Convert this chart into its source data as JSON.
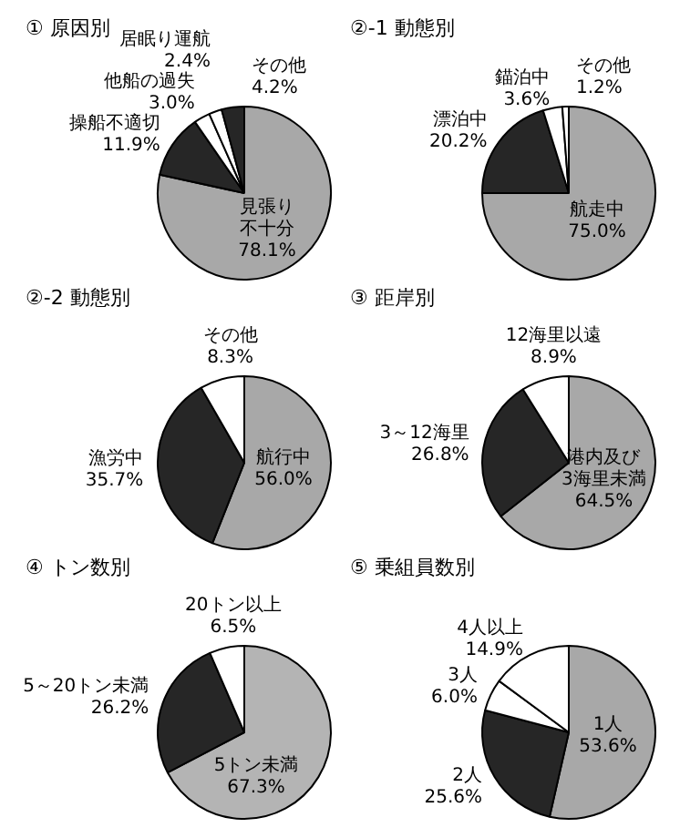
{
  "chart_data": [
    {
      "type": "pie",
      "title": "① 原因別",
      "categories": [
        "見張り不十分",
        "操船不適切",
        "他船の過失",
        "居眠り運航",
        "その他"
      ],
      "values": [
        78.1,
        11.9,
        3.0,
        2.4,
        4.2
      ],
      "colors": [
        "#a8a8a8",
        "#262626",
        "#ffffff",
        "#ffffff",
        "#262626"
      ],
      "value_labels": [
        "78.1%",
        "11.9%",
        "3.0%",
        "2.4%",
        "4.2%"
      ]
    },
    {
      "type": "pie",
      "title": "②-1 動態別",
      "categories": [
        "航走中",
        "漂泊中",
        "錨泊中",
        "その他"
      ],
      "values": [
        75.0,
        20.2,
        3.6,
        1.2
      ],
      "colors": [
        "#a8a8a8",
        "#262626",
        "#ffffff",
        "#ffffff"
      ],
      "value_labels": [
        "75.0%",
        "20.2%",
        "3.6%",
        "1.2%"
      ]
    },
    {
      "type": "pie",
      "title": "②-2 動態別",
      "categories": [
        "航行中",
        "漁労中",
        "その他"
      ],
      "values": [
        56.0,
        35.7,
        8.3
      ],
      "colors": [
        "#a8a8a8",
        "#262626",
        "#ffffff"
      ],
      "value_labels": [
        "56.0%",
        "35.7%",
        "8.3%"
      ]
    },
    {
      "type": "pie",
      "title": "③ 距岸別",
      "categories": [
        "港内及び3海里未満",
        "3～12海里",
        "12海里以遠"
      ],
      "values": [
        64.5,
        26.8,
        8.9
      ],
      "colors": [
        "#a8a8a8",
        "#262626",
        "#ffffff"
      ],
      "value_labels": [
        "64.5%",
        "26.8%",
        "8.9%"
      ]
    },
    {
      "type": "pie",
      "title": "④ トン数別",
      "categories": [
        "5トン未満",
        "5～20トン未満",
        "20トン以上"
      ],
      "values": [
        67.3,
        26.2,
        6.5
      ],
      "colors": [
        "#b4b4b4",
        "#262626",
        "#ffffff"
      ],
      "value_labels": [
        "67.3%",
        "26.2%",
        "6.5%"
      ]
    },
    {
      "type": "pie",
      "title": "⑤ 乗組員数別",
      "categories": [
        "1人",
        "2人",
        "3人",
        "4人以上"
      ],
      "values": [
        53.6,
        25.6,
        6.0,
        14.9
      ],
      "colors": [
        "#a8a8a8",
        "#262626",
        "#ffffff",
        "#ffffff"
      ],
      "value_labels": [
        "53.6%",
        "25.6%",
        "6.0%",
        "14.9%"
      ]
    }
  ]
}
